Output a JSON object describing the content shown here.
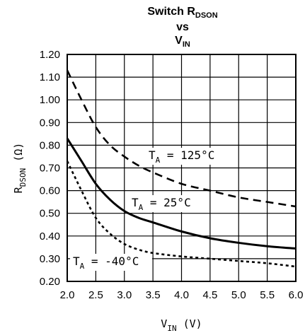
{
  "chart_data": {
    "type": "line",
    "title_lines": [
      {
        "text": "Switch R",
        "sub": "DSON"
      },
      {
        "text": "vs",
        "sub": ""
      },
      {
        "text": "V",
        "sub": "IN"
      }
    ],
    "xlabel": {
      "main": "V",
      "sub": "IN",
      "unit": "(V)"
    },
    "ylabel": {
      "main": "R",
      "sub": "DSON",
      "unit": "(Ω)"
    },
    "xlim": [
      2.0,
      6.0
    ],
    "ylim": [
      0.2,
      1.2
    ],
    "x_ticks": [
      "2.0",
      "2.5",
      "3.0",
      "3.5",
      "4.0",
      "4.5",
      "5.0",
      "5.5",
      "6.0"
    ],
    "y_ticks": [
      "0.20",
      "0.30",
      "0.40",
      "0.50",
      "0.60",
      "0.70",
      "0.80",
      "0.90",
      "1.00",
      "1.10",
      "1.20"
    ],
    "grid": true,
    "series": [
      {
        "name_main": "T",
        "name_sub": "A",
        "name_rest": "= 125°C",
        "style": "dashed",
        "x": [
          2.0,
          2.25,
          2.5,
          2.75,
          3.0,
          3.25,
          3.5,
          4.0,
          4.5,
          5.0,
          5.5,
          6.0
        ],
        "y": [
          1.13,
          1.0,
          0.88,
          0.8,
          0.75,
          0.71,
          0.68,
          0.63,
          0.6,
          0.57,
          0.55,
          0.53
        ]
      },
      {
        "name_main": "T",
        "name_sub": "A",
        "name_rest": "= 25°C",
        "style": "solid",
        "x": [
          2.0,
          2.25,
          2.5,
          2.75,
          3.0,
          3.25,
          3.5,
          4.0,
          4.5,
          5.0,
          5.5,
          6.0
        ],
        "y": [
          0.83,
          0.73,
          0.63,
          0.56,
          0.51,
          0.48,
          0.46,
          0.42,
          0.39,
          0.37,
          0.355,
          0.345
        ]
      },
      {
        "name_main": "T",
        "name_sub": "A",
        "name_rest": "= -40°C",
        "style": "dotted",
        "x": [
          2.0,
          2.25,
          2.5,
          2.75,
          3.0,
          3.25,
          3.5,
          4.0,
          4.5,
          5.0,
          5.5,
          6.0
        ],
        "y": [
          0.73,
          0.6,
          0.48,
          0.41,
          0.365,
          0.34,
          0.325,
          0.31,
          0.3,
          0.29,
          0.28,
          0.265
        ]
      }
    ]
  }
}
